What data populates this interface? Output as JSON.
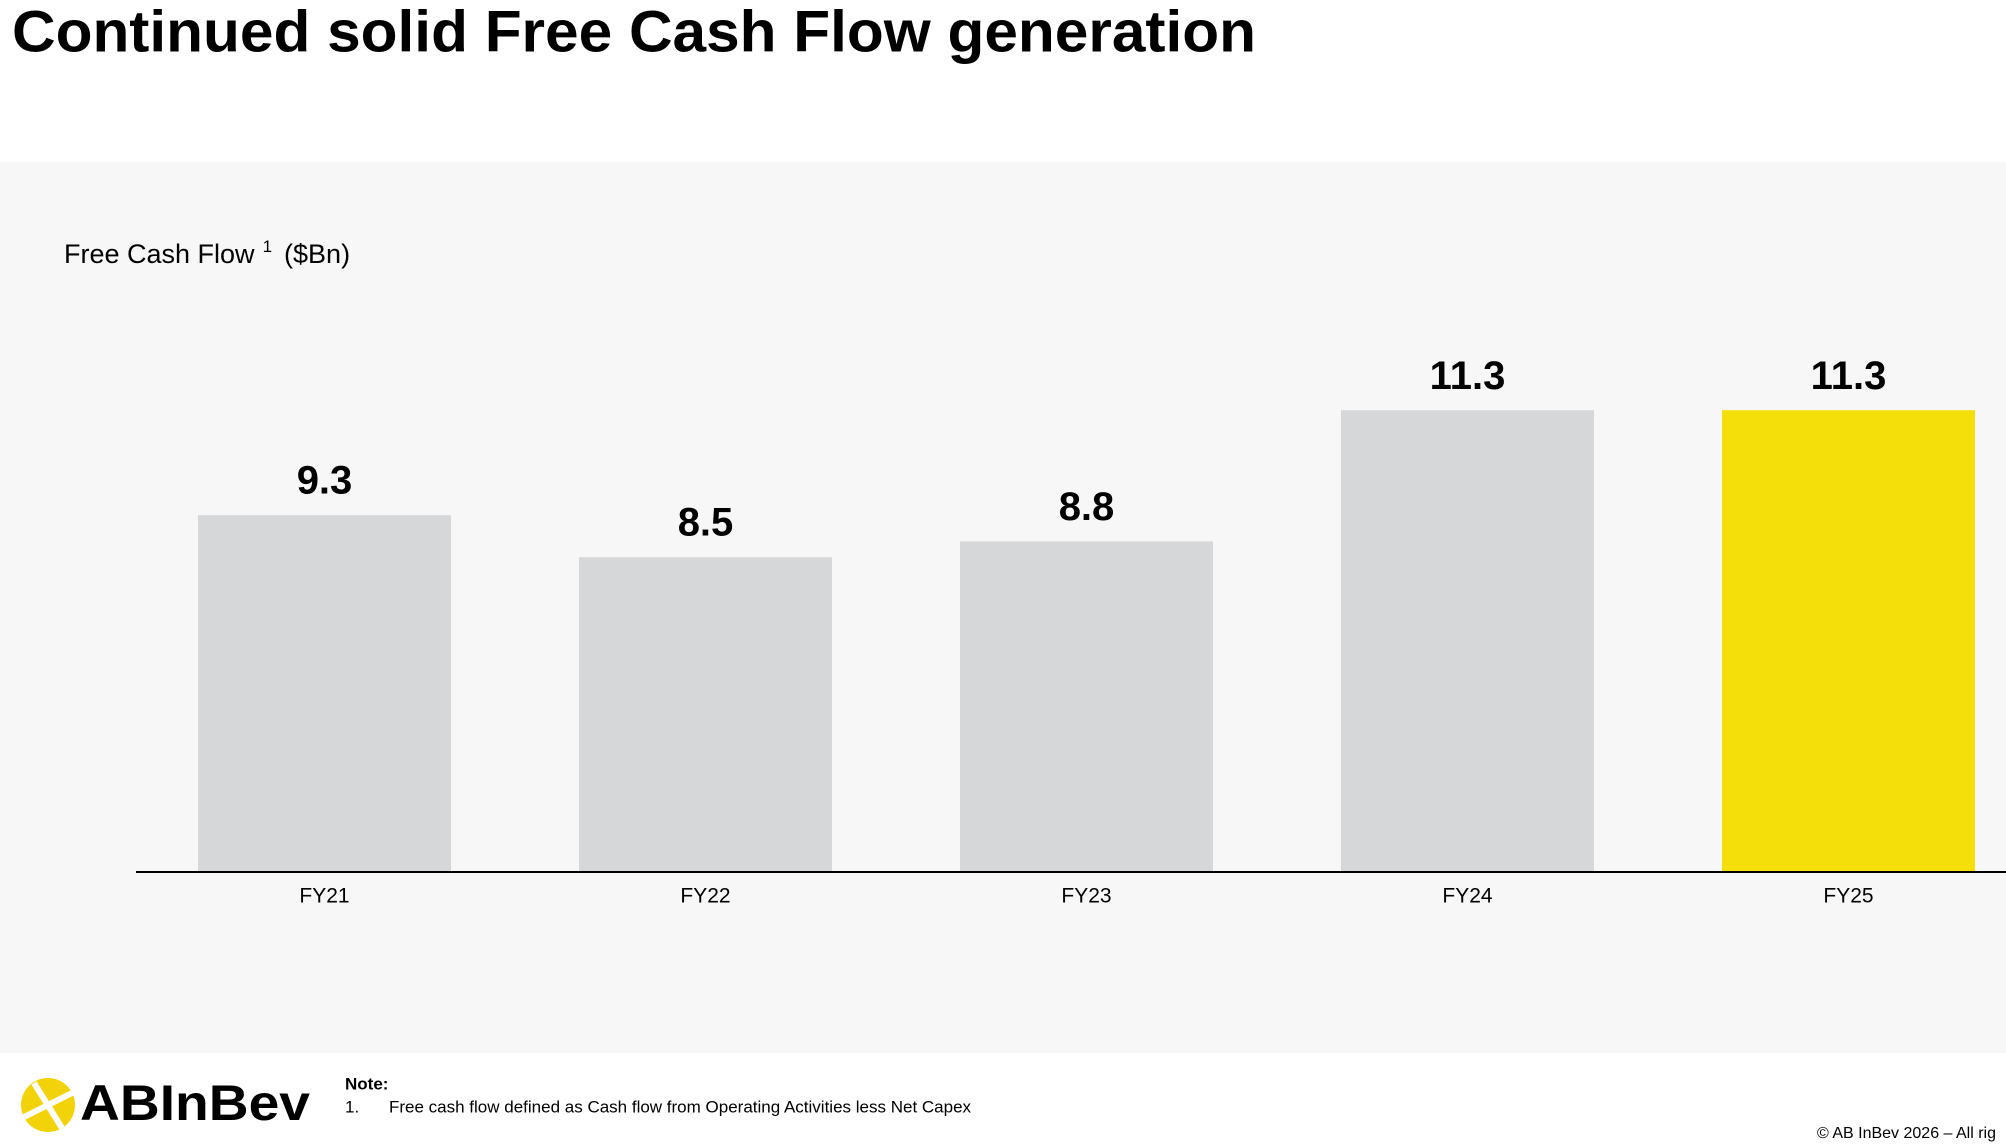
{
  "chart_data": {
    "type": "bar",
    "title": "Continued solid Free Cash Flow generation",
    "y_label": "Free Cash Flow",
    "y_label_note": "1",
    "y_label_unit": "($Bn)",
    "categories": [
      "FY21",
      "FY22",
      "FY23",
      "FY24",
      "FY25"
    ],
    "values": [
      9.3,
      8.5,
      8.8,
      11.3,
      11.3
    ],
    "colors": [
      "#d6d7d9",
      "#d6d7d9",
      "#d6d7d9",
      "#d6d7d9",
      "#f5df0a"
    ],
    "ylim": [
      2.5,
      13
    ],
    "grid": false
  },
  "footer": {
    "logo": "ABInBev",
    "note_heading": "Note:",
    "note_number": "1.",
    "note_text": "Free cash flow defined as Cash flow from Operating Activities less Net Capex",
    "copyright": "© AB InBev 2026 – All rig"
  }
}
